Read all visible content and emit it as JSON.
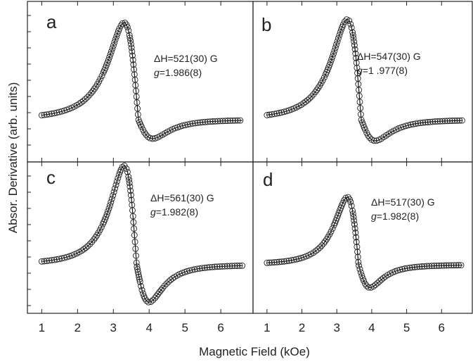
{
  "chart_data": {
    "type": "scatter",
    "xlabel": "Magnetic Field (kOe)",
    "ylabel": "Absor. Derivative (arb. units)",
    "xlim": [
      0.6,
      6.9
    ],
    "xticks": [
      "1",
      "2",
      "3",
      "4",
      "5",
      "6"
    ],
    "y_tick_labels_shown": false,
    "layout": "2x2 grid, shared axes",
    "marker": "open circle",
    "panels": [
      {
        "label": "a",
        "deltaH": "ΔH=521(30) G",
        "g_symbol": "g",
        "g_value": "=1.986(8)",
        "peak_field": 3.3,
        "trough_field": 4.1,
        "peak_amplitude": 0.92,
        "trough_amplitude": -0.18
      },
      {
        "label": "b",
        "deltaH": "ΔH=547(30) G",
        "g_symbol": "g",
        "g_value": "=1 .977(8)",
        "peak_field": 3.3,
        "trough_field": 4.1,
        "peak_amplitude": 0.95,
        "trough_amplitude": -0.2
      },
      {
        "label": "c",
        "deltaH": "ΔH=561(30) G",
        "g_symbol": "g",
        "g_value": "=1.982(8)",
        "peak_field": 3.3,
        "trough_field": 4.0,
        "peak_amplitude": 0.95,
        "trough_amplitude": -0.36
      },
      {
        "label": "d",
        "deltaH": "ΔH=517(30) G",
        "g_symbol": "g",
        "g_value": "=1.982(8)",
        "peak_field": 3.3,
        "trough_field": 3.95,
        "peak_amplitude": 0.65,
        "trough_amplitude": -0.22
      }
    ],
    "x_range_of_data": [
      1.0,
      6.6
    ],
    "grid": false,
    "legend": "none"
  }
}
